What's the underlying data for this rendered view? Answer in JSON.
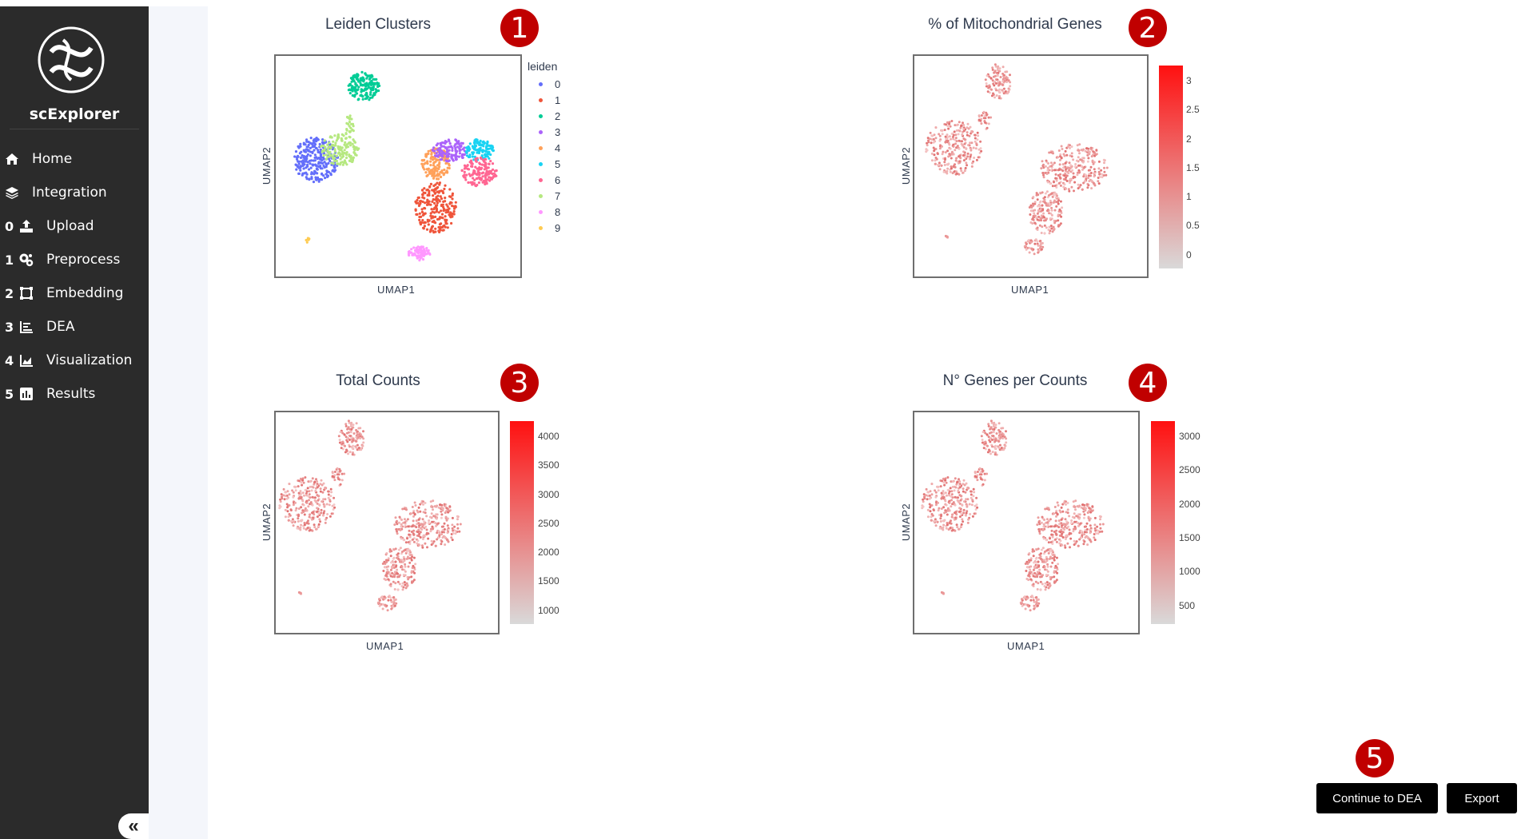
{
  "app": {
    "name": "scExplorer"
  },
  "sidebar": {
    "items": [
      {
        "num": "",
        "label": "Home",
        "icon": "home-icon"
      },
      {
        "num": "",
        "label": "Integration",
        "icon": "layers-icon"
      },
      {
        "num": "0",
        "label": "Upload",
        "icon": "upload-icon"
      },
      {
        "num": "1",
        "label": "Preprocess",
        "icon": "gears-icon"
      },
      {
        "num": "2",
        "label": "Embedding",
        "icon": "vector-square-icon"
      },
      {
        "num": "3",
        "label": "DEA",
        "icon": "list-chart-icon"
      },
      {
        "num": "4",
        "label": "Visualization",
        "icon": "area-chart-icon"
      },
      {
        "num": "5",
        "label": "Results",
        "icon": "bar-chart-icon"
      }
    ],
    "collapse_label": "«"
  },
  "colors": {
    "sidebar_bg": "#2b2b2b",
    "badge": "#c00000",
    "colorbar_low": "#d9d9d9",
    "colorbar_high": "#ff1010"
  },
  "plots": {
    "p1": {
      "title": "Leiden Clusters",
      "xlabel": "UMAP1",
      "ylabel": "UMAP2",
      "badge": "1",
      "legend_title": "leiden",
      "legend": [
        "0",
        "1",
        "2",
        "3",
        "4",
        "5",
        "6",
        "7",
        "8",
        "9"
      ]
    },
    "p2": {
      "title": "% of Mitochondrial Genes",
      "xlabel": "UMAP1",
      "ylabel": "UMAP2",
      "badge": "2",
      "colorbar_ticks": [
        "3",
        "2.5",
        "2",
        "1.5",
        "1",
        "0.5",
        "0"
      ]
    },
    "p3": {
      "title": "Total Counts",
      "xlabel": "UMAP1",
      "ylabel": "UMAP2",
      "badge": "3",
      "colorbar_ticks": [
        "4000",
        "3500",
        "3000",
        "2500",
        "2000",
        "1500",
        "1000"
      ]
    },
    "p4": {
      "title": "N° Genes per Counts",
      "xlabel": "UMAP1",
      "ylabel": "UMAP2",
      "badge": "4",
      "colorbar_ticks": [
        "3000",
        "2500",
        "2000",
        "1500",
        "1000",
        "500"
      ]
    }
  },
  "chart_data": [
    {
      "type": "scatter",
      "title": "Leiden Clusters",
      "xlabel": "UMAP1",
      "ylabel": "UMAP2",
      "legend_title": "leiden",
      "series": [
        {
          "name": "0",
          "color": "#636efa"
        },
        {
          "name": "1",
          "color": "#ef553b"
        },
        {
          "name": "2",
          "color": "#00cc96"
        },
        {
          "name": "3",
          "color": "#ab63fa"
        },
        {
          "name": "4",
          "color": "#ffa15a"
        },
        {
          "name": "5",
          "color": "#19d3f3"
        },
        {
          "name": "6",
          "color": "#ff6692"
        },
        {
          "name": "7",
          "color": "#b6e880"
        },
        {
          "name": "8",
          "color": "#ff97ff"
        },
        {
          "name": "9",
          "color": "#fecb52"
        }
      ]
    },
    {
      "type": "scatter",
      "title": "% of Mitochondrial Genes",
      "xlabel": "UMAP1",
      "ylabel": "UMAP2",
      "colorbar_range": [
        0,
        3.5
      ]
    },
    {
      "type": "scatter",
      "title": "Total Counts",
      "xlabel": "UMAP1",
      "ylabel": "UMAP2",
      "colorbar_range": [
        800,
        4300
      ]
    },
    {
      "type": "scatter",
      "title": "N° Genes per Counts",
      "xlabel": "UMAP1",
      "ylabel": "UMAP2",
      "colorbar_range": [
        300,
        3300
      ]
    }
  ],
  "annotations": {
    "b5": "5"
  },
  "buttons": {
    "continue": "Continue to DEA",
    "export": "Export"
  }
}
